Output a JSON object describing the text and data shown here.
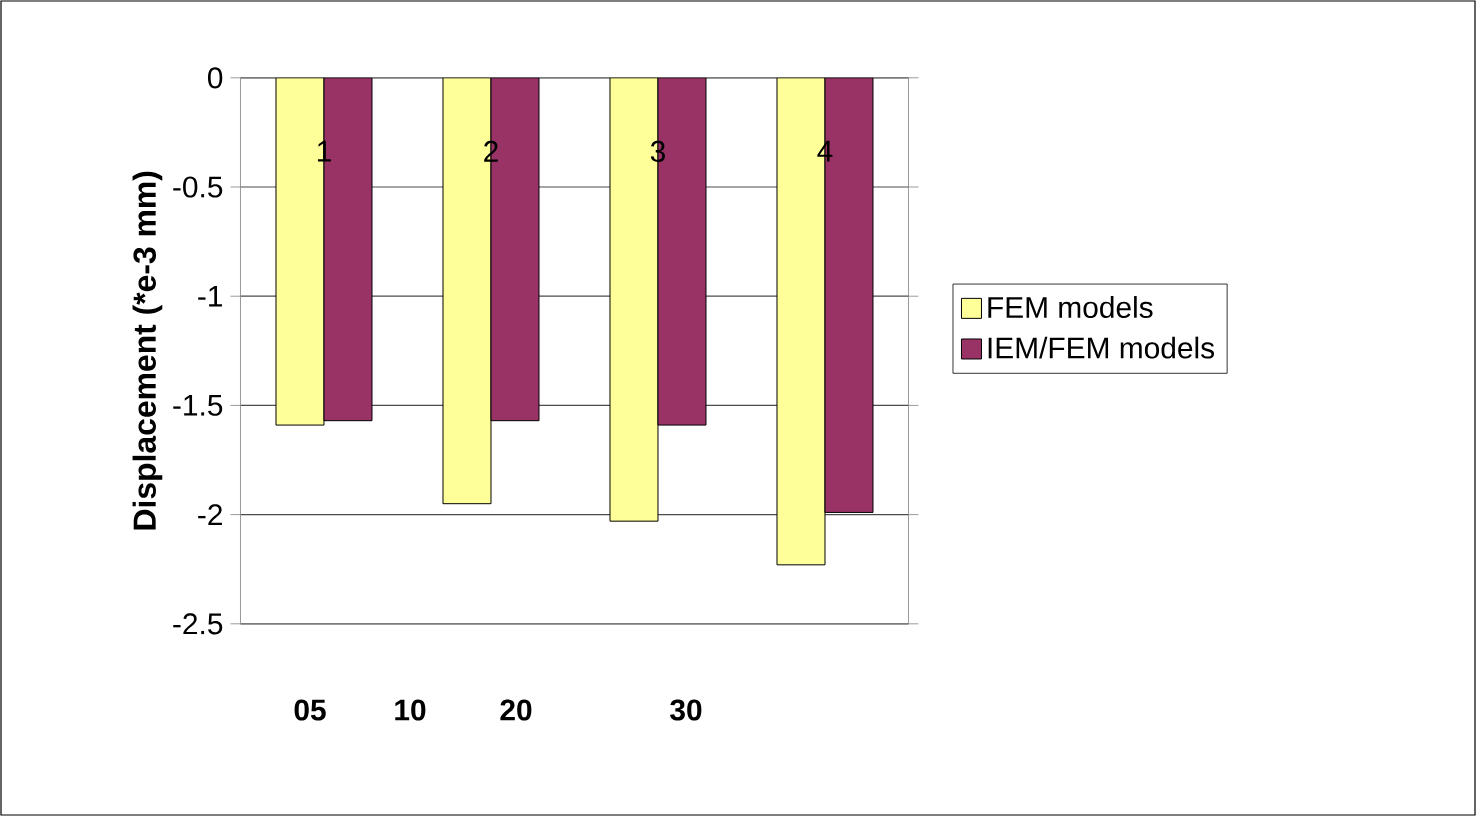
{
  "chart_data": {
    "type": "bar",
    "ylabel": "Displacement (*e-3 mm)",
    "categories": [
      "1",
      "2",
      "3",
      "4"
    ],
    "series": [
      {
        "name": "FEM models",
        "color": "#ffff99",
        "values": [
          -1.59,
          -1.95,
          -2.03,
          -2.23
        ]
      },
      {
        "name": "IEM/FEM models",
        "color": "#993366",
        "values": [
          -1.57,
          -1.57,
          -1.59,
          -1.99
        ]
      }
    ],
    "ylim": [
      -2.5,
      0
    ],
    "yticks": [
      -2.5,
      -2,
      -1.5,
      -1,
      -0.5,
      0
    ],
    "grid": "y",
    "legend": "right",
    "annotations": [
      "05",
      "10",
      "20",
      "30"
    ]
  }
}
